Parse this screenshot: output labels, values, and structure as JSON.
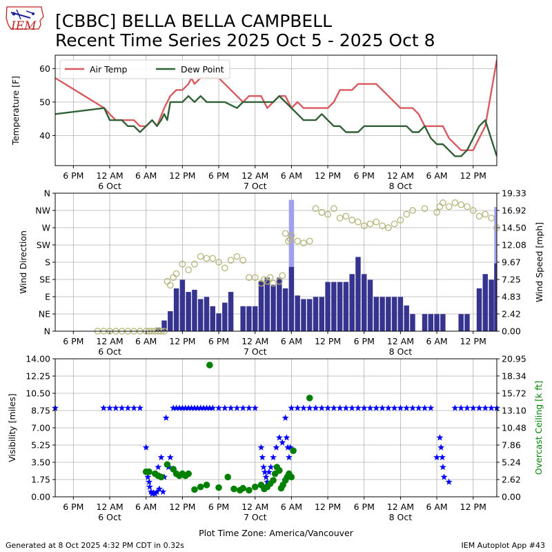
{
  "header": {
    "title_line1": "[CBBC] BELLA BELLA CAMPBELL",
    "title_line2": "Recent Time Series 2025 Oct 5 - 2025 Oct 8",
    "logo_text": "IEM"
  },
  "footer": {
    "generated": "Generated at 8 Oct 2025 4:32 PM CDT in 0.32s",
    "app": "IEM Autoplot App #43"
  },
  "colors": {
    "air_temp": "#d9595f",
    "dew_point": "#2f5f34",
    "wind_bar": "#36348f",
    "gust_bar": "#a0a0ee",
    "wind_dir": "#b5b57a",
    "visibility": "#0000ff",
    "ceiling": "#008000",
    "grid": "#b0b0b0"
  },
  "chart_data": [
    {
      "type": "line",
      "name": "temperature",
      "ylabel": "Temperature [F]",
      "ylim": [
        31,
        64
      ],
      "yticks": [
        40,
        50,
        60
      ],
      "grid": true,
      "legend": "top-left",
      "x_unit": "hours since 5 Oct 12 PM",
      "xlim": [
        3.0,
        75.9
      ],
      "xticks": [
        6,
        12,
        18,
        24,
        30,
        36,
        42,
        48,
        54,
        60,
        66,
        72
      ],
      "xtick_labels": [
        "6 PM",
        "12 AM\n6 Oct",
        "6 AM",
        "12 PM",
        "6 PM",
        "12 AM\n7 Oct",
        "6 AM",
        "12 PM",
        "6 PM",
        "12 AM\n8 Oct",
        "6 AM",
        "12 PM"
      ],
      "series": [
        {
          "name": "Air Temp",
          "color_key": "air_temp",
          "x": [
            3.0,
            11.1,
            12.0,
            13.0,
            14.0,
            15.0,
            16.0,
            17.0,
            18.0,
            19.0,
            19.8,
            21.0,
            22.0,
            23.0,
            24.0,
            25.0,
            25.5,
            26.0,
            27.0,
            30.0,
            31.0,
            33.0,
            34.0,
            35.0,
            36.0,
            37.0,
            38.0,
            39.0,
            40.0,
            41.0,
            42.0,
            43.0,
            44.0,
            45.0,
            48.0,
            49.0,
            50.0,
            52.0,
            53.0,
            54.0,
            56.0,
            57.0,
            58.0,
            59.0,
            60.0,
            62.0,
            63.0,
            64.0,
            65.0,
            66.0,
            67.0,
            68.0,
            69.0,
            70.0,
            71.0,
            72.0,
            73.0,
            74.0,
            75.9
          ],
          "values": [
            57.2,
            48.2,
            46.4,
            44.6,
            44.6,
            44.6,
            44.6,
            42.8,
            42.8,
            44.6,
            42.8,
            48.2,
            51.8,
            53.6,
            53.6,
            55.4,
            57.2,
            55.4,
            57.2,
            57.2,
            55.4,
            51.8,
            50.0,
            51.8,
            51.8,
            51.8,
            48.2,
            50.0,
            51.8,
            51.8,
            48.2,
            50.0,
            48.2,
            48.2,
            48.2,
            50.0,
            53.6,
            53.6,
            55.4,
            55.4,
            55.4,
            53.6,
            51.8,
            50.0,
            48.2,
            48.2,
            46.4,
            42.8,
            42.8,
            42.8,
            42.8,
            39.2,
            37.4,
            35.6,
            35.6,
            35.6,
            39.2,
            42.8,
            62.6
          ]
        },
        {
          "name": "Dew Point",
          "color_key": "dew_point",
          "x": [
            3.0,
            11.1,
            12.0,
            13.0,
            14.0,
            15.0,
            16.0,
            17.0,
            18.0,
            19.0,
            19.8,
            20.5,
            21.0,
            21.5,
            22.0,
            22.5,
            23.0,
            24.0,
            25.0,
            26.0,
            27.0,
            28.0,
            29.0,
            30.0,
            31.0,
            33.0,
            34.0,
            35.0,
            36.0,
            37.0,
            38.0,
            39.0,
            40.0,
            41.0,
            42.0,
            43.0,
            44.0,
            45.0,
            46.0,
            47.0,
            48.0,
            49.0,
            50.0,
            51.0,
            52.0,
            53.0,
            54.0,
            55.0,
            56.0,
            57.0,
            58.0,
            59.0,
            60.0,
            61.0,
            62.0,
            63.0,
            64.0,
            65.0,
            66.0,
            67.0,
            68.0,
            69.0,
            70.0,
            71.0,
            71.5,
            72.0,
            73.0,
            74.0,
            75.9
          ],
          "values": [
            46.4,
            48.2,
            44.6,
            44.6,
            44.6,
            42.8,
            42.8,
            41.0,
            42.8,
            44.6,
            42.8,
            44.6,
            46.4,
            44.6,
            50.0,
            50.0,
            50.0,
            50.0,
            51.8,
            50.0,
            51.8,
            50.0,
            50.0,
            50.0,
            50.0,
            48.2,
            50.0,
            50.0,
            50.0,
            50.0,
            50.0,
            50.0,
            51.8,
            50.0,
            48.2,
            46.4,
            44.6,
            44.6,
            44.6,
            46.4,
            44.6,
            42.8,
            42.8,
            41.0,
            41.0,
            41.0,
            42.8,
            42.8,
            42.8,
            42.8,
            42.8,
            42.8,
            42.8,
            42.8,
            41.0,
            41.0,
            42.8,
            39.2,
            37.4,
            37.4,
            35.6,
            33.8,
            33.8,
            35.6,
            37.4,
            39.2,
            42.8,
            44.6,
            33.8
          ]
        }
      ]
    },
    {
      "type": "bar+scatter",
      "name": "wind",
      "ylabel": "Wind Direction",
      "y2label": "Wind Speed [mph]",
      "ylim": [
        0,
        360
      ],
      "yticks": [
        0,
        45,
        90,
        135,
        180,
        225,
        270,
        315,
        360
      ],
      "ytick_labels": [
        "N",
        "NE",
        "E",
        "SE",
        "S",
        "SW",
        "W",
        "NW",
        "N"
      ],
      "y2lim": [
        0,
        19.33
      ],
      "y2ticks": [
        0.0,
        2.42,
        4.83,
        7.25,
        9.67,
        12.08,
        14.5,
        16.92,
        19.33
      ],
      "grid": true,
      "x_unit": "hours since 5 Oct 12 PM",
      "xlim": [
        3.0,
        75.9
      ],
      "xticks": [
        6,
        12,
        18,
        24,
        30,
        36,
        42,
        48,
        54,
        60,
        66,
        72
      ],
      "xtick_labels": [
        "6 PM",
        "12 AM\n6 Oct",
        "6 AM",
        "12 PM",
        "6 PM",
        "12 AM\n7 Oct",
        "6 AM",
        "12 PM",
        "6 PM",
        "12 AM\n8 Oct",
        "6 AM",
        "12 PM"
      ],
      "wind_speed": {
        "name": "Wind Speed",
        "color_key": "wind_bar",
        "x": [
          20.0,
          21.0,
          22.0,
          23.0,
          24.0,
          25.0,
          26.0,
          27.0,
          28.0,
          29.0,
          30.0,
          31.0,
          32.0,
          33.0,
          34.0,
          35.0,
          36.0,
          37.0,
          38.0,
          39.0,
          40.0,
          41.0,
          42.0,
          43.0,
          44.0,
          45.0,
          46.0,
          47.0,
          48.0,
          49.0,
          50.0,
          51.0,
          52.0,
          53.0,
          54.0,
          55.0,
          56.0,
          57.0,
          58.0,
          59.0,
          60.0,
          61.0,
          62.0,
          63.0,
          64.0,
          65.0,
          66.0,
          67.0,
          68.0,
          69.0,
          70.0,
          71.0,
          72.0,
          73.0,
          74.0,
          75.0,
          75.9
        ],
        "values": [
          0.5,
          1.5,
          2.8,
          6.0,
          7.2,
          5.5,
          5.8,
          4.5,
          4.8,
          3.5,
          2.5,
          4.0,
          5.5,
          0.0,
          3.5,
          3.5,
          3.5,
          7.0,
          7.5,
          6.5,
          7.5,
          6.0,
          9.0,
          5.0,
          4.5,
          4.5,
          4.8,
          4.8,
          6.9,
          6.9,
          6.9,
          6.9,
          8.0,
          10.4,
          8.0,
          7.2,
          4.8,
          4.8,
          4.8,
          4.8,
          4.8,
          3.6,
          2.4,
          0.0,
          2.4,
          2.4,
          2.4,
          2.4,
          0.0,
          0.0,
          2.4,
          2.4,
          0.0,
          6.0,
          8.0,
          7.2,
          9.5
        ]
      },
      "wind_gust": {
        "name": "Wind Gust",
        "color_key": "gust_bar",
        "x": [
          42.0,
          75.9
        ],
        "values": [
          18.4,
          17.4
        ]
      },
      "wind_direction": {
        "name": "Wind Direction",
        "color_key": "wind_dir",
        "x": [
          10.0,
          11.0,
          12.0,
          13.0,
          14.0,
          15.0,
          16.0,
          17.0,
          18.0,
          18.5,
          19.0,
          19.5,
          20.0,
          20.5,
          21.0,
          21.5,
          22.0,
          22.5,
          23.0,
          24.0,
          25.0,
          26.0,
          27.0,
          28.0,
          29.0,
          30.0,
          31.0,
          32.0,
          33.0,
          34.0,
          35.0,
          36.0,
          37.0,
          37.5,
          38.0,
          38.5,
          39.0,
          40.0,
          40.5,
          41.0,
          41.5,
          41.8,
          42.0,
          43.0,
          44.0,
          45.0,
          46.0,
          47.0,
          48.0,
          49.0,
          50.0,
          51.0,
          52.0,
          53.0,
          54.0,
          55.0,
          56.0,
          57.0,
          58.0,
          59.0,
          60.0,
          61.0,
          62.0,
          64.0,
          66.0,
          66.5,
          67.0,
          68.0,
          69.0,
          70.0,
          71.0,
          72.0,
          73.0,
          74.0,
          75.0,
          75.9
        ],
        "values": [
          0,
          0,
          0,
          0,
          0,
          0,
          0,
          0,
          0,
          0,
          0,
          0,
          0,
          0,
          0,
          130,
          120,
          140,
          150,
          175,
          160,
          175,
          195,
          190,
          190,
          180,
          165,
          185,
          195,
          185,
          140,
          140,
          125,
          135,
          130,
          140,
          125,
          130,
          145,
          255,
          235,
          240,
          250,
          235,
          230,
          235,
          320,
          310,
          305,
          320,
          295,
          300,
          290,
          285,
          275,
          280,
          285,
          275,
          270,
          280,
          290,
          305,
          315,
          320,
          310,
          325,
          335,
          325,
          335,
          330,
          325,
          315,
          300,
          305,
          295,
          270
        ]
      }
    },
    {
      "type": "scatter",
      "name": "visibility_ceiling",
      "ylabel": "Visibility [miles]",
      "y2label": "Overcast Ceiling [k ft]",
      "ylim": [
        0,
        14.0
      ],
      "yticks": [
        0.0,
        1.75,
        3.5,
        5.25,
        7.0,
        8.75,
        10.5,
        12.25,
        14.0
      ],
      "y2lim": [
        0,
        20.95
      ],
      "y2ticks": [
        0.0,
        2.62,
        5.24,
        7.86,
        10.48,
        13.1,
        15.72,
        18.34,
        20.95
      ],
      "grid": true,
      "x_unit": "hours since 5 Oct 12 PM",
      "xlim": [
        3.0,
        75.9
      ],
      "xticks": [
        6,
        12,
        18,
        24,
        30,
        36,
        42,
        48,
        54,
        60,
        66,
        72
      ],
      "xtick_labels": [
        "6 PM",
        "12 AM\n6 Oct",
        "6 AM",
        "12 PM",
        "6 PM",
        "12 AM\n7 Oct",
        "6 AM",
        "12 PM",
        "6 PM",
        "12 AM\n8 Oct",
        "6 AM",
        "12 PM"
      ],
      "xlabel": "Plot Time Zone: America/Vancouver",
      "series": [
        {
          "name": "Visibility",
          "marker": "star",
          "color_key": "visibility",
          "x": [
            3.0,
            11.0,
            12.0,
            13.0,
            14.0,
            15.0,
            16.0,
            17.0,
            18.0,
            18.3,
            18.5,
            18.6,
            18.8,
            19.0,
            19.2,
            19.5,
            19.8,
            20.0,
            20.2,
            20.5,
            20.8,
            21.0,
            21.3,
            21.7,
            22.0,
            22.5,
            23.0,
            23.5,
            24.0,
            24.5,
            25.0,
            25.5,
            26.0,
            26.5,
            27.0,
            27.5,
            28.0,
            28.5,
            29.0,
            30.0,
            31.0,
            32.0,
            33.0,
            34.0,
            35.0,
            36.0,
            37.0,
            37.2,
            37.4,
            37.6,
            37.8,
            38.0,
            38.3,
            38.6,
            39.0,
            39.5,
            40.0,
            40.5,
            41.0,
            41.2,
            41.4,
            41.6,
            41.8,
            42.0,
            43.0,
            44.0,
            45.0,
            46.0,
            47.0,
            48.0,
            49.0,
            50.0,
            51.0,
            52.0,
            53.0,
            54.0,
            55.0,
            56.0,
            57.0,
            58.0,
            59.0,
            60.0,
            61.0,
            62.0,
            63.0,
            64.0,
            65.0,
            66.0,
            66.5,
            66.7,
            66.9,
            67.0,
            67.2,
            68.0,
            69.0,
            70.0,
            71.0,
            72.0,
            73.0,
            74.0,
            75.0,
            75.9
          ],
          "values": [
            9.0,
            9.0,
            9.0,
            9.0,
            9.0,
            9.0,
            9.0,
            9.0,
            5.0,
            2.0,
            1.5,
            1.0,
            0.5,
            0.3,
            0.4,
            0.3,
            0.5,
            3.0,
            0.8,
            4.0,
            0.5,
            2.0,
            8.0,
            3.0,
            4.0,
            9.0,
            9.0,
            9.0,
            9.0,
            9.0,
            9.0,
            9.0,
            9.0,
            9.0,
            9.0,
            9.0,
            9.0,
            9.0,
            9.0,
            9.0,
            9.0,
            9.0,
            9.0,
            9.0,
            9.0,
            9.0,
            5.0,
            4.0,
            3.0,
            2.5,
            2.0,
            1.5,
            2.5,
            3.0,
            4.0,
            5.0,
            6.0,
            5.5,
            8.0,
            6.0,
            5.0,
            4.0,
            5.0,
            9.0,
            9.0,
            9.0,
            9.0,
            9.0,
            9.0,
            9.0,
            9.0,
            9.0,
            9.0,
            9.0,
            9.0,
            9.0,
            9.0,
            9.0,
            9.0,
            9.0,
            9.0,
            9.0,
            9.0,
            9.0,
            9.0,
            9.0,
            9.0,
            4.0,
            6.0,
            5.0,
            4.0,
            3.0,
            2.0,
            1.5,
            9.0,
            9.0,
            9.0,
            9.0,
            9.0,
            9.0,
            9.0,
            9.0
          ]
        },
        {
          "name": "Overcast Ceiling",
          "marker": "circle",
          "color_key": "ceiling",
          "axis": "y2",
          "x": [
            18.0,
            18.5,
            19.5,
            20.0,
            20.5,
            21.5,
            22.5,
            23.0,
            23.5,
            24.0,
            24.5,
            25.0,
            26.0,
            27.0,
            28.0,
            28.5,
            30.0,
            31.5,
            32.5,
            33.5,
            34.0,
            35.0,
            36.0,
            37.0,
            37.5,
            38.0,
            38.5,
            39.0,
            39.3,
            39.6,
            40.0,
            40.3,
            40.6,
            41.0,
            41.3,
            41.6,
            42.0,
            42.3,
            45.0
          ],
          "values": [
            3.8,
            3.8,
            3.5,
            3.2,
            3.0,
            4.9,
            4.2,
            3.5,
            3.2,
            3.5,
            3.2,
            3.5,
            1.1,
            1.5,
            1.8,
            20.0,
            1.4,
            3.0,
            1.2,
            1.0,
            1.3,
            1.0,
            1.5,
            1.8,
            1.2,
            1.5,
            2.0,
            2.5,
            3.5,
            4.5,
            4.0,
            1.3,
            1.8,
            2.5,
            3.0,
            3.5,
            3.0,
            7.0,
            15.0
          ]
        }
      ]
    }
  ]
}
